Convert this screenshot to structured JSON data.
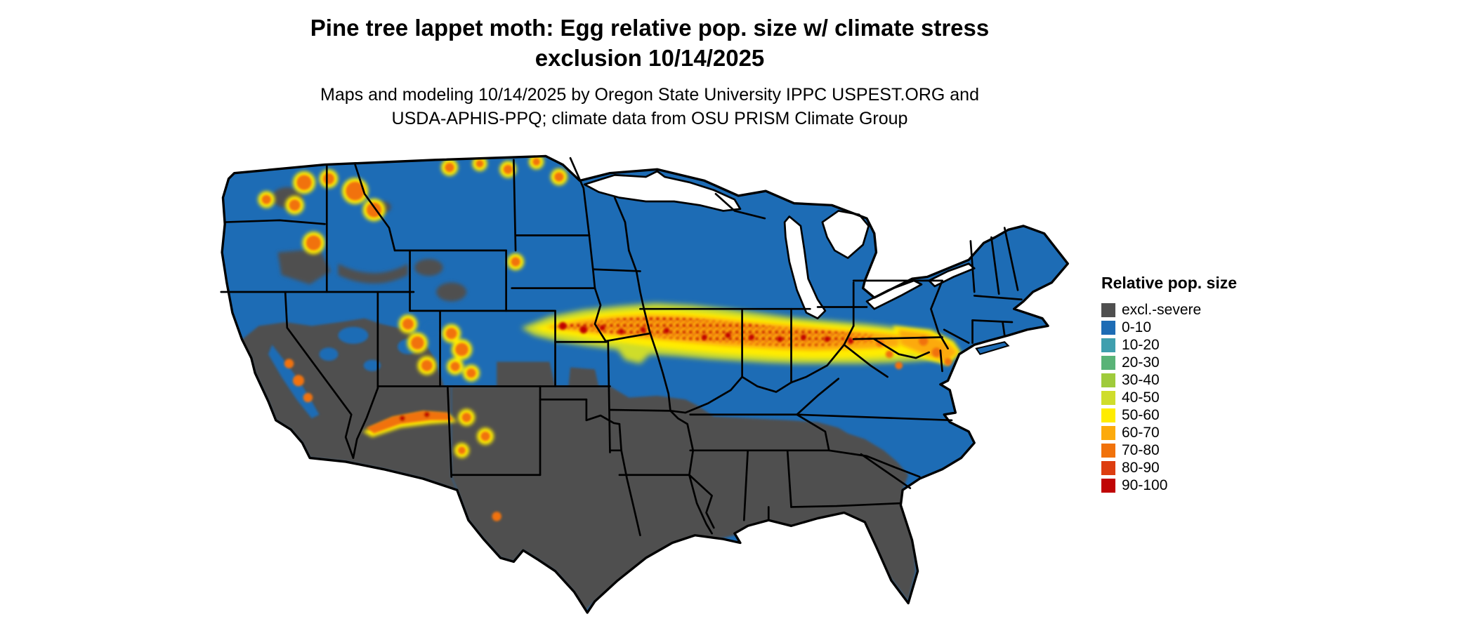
{
  "title": {
    "line1": "Pine tree lappet moth: Egg relative pop. size w/ climate stress",
    "line2": "exclusion 10/14/2025"
  },
  "subtitle": {
    "line1": "Maps and modeling 10/14/2025 by Oregon State University IPPC USPEST.ORG and",
    "line2": "USDA-APHIS-PPQ; climate data from OSU PRISM Climate Group"
  },
  "legend": {
    "title": "Relative pop. size",
    "items": [
      {
        "label": "excl.-severe",
        "color": "#4f4f4f"
      },
      {
        "label": "0-10",
        "color": "#1d6cb5"
      },
      {
        "label": "10-20",
        "color": "#3f9fae"
      },
      {
        "label": "20-30",
        "color": "#59b377"
      },
      {
        "label": "30-40",
        "color": "#9fcb3b"
      },
      {
        "label": "40-50",
        "color": "#cfdd2c"
      },
      {
        "label": "50-60",
        "color": "#ffec00"
      },
      {
        "label": "60-70",
        "color": "#fcaa0c"
      },
      {
        "label": "70-80",
        "color": "#f1720b"
      },
      {
        "label": "80-90",
        "color": "#dd3d10"
      },
      {
        "label": "90-100",
        "color": "#c00505"
      }
    ]
  },
  "colors": {
    "map_base": "#1d6cb5",
    "excluded": "#4f4f4f",
    "water": "#ffffff",
    "border": "#000000",
    "band_30_40": "#9fcb3b",
    "band_40_50": "#cfdd2c",
    "band_50_60": "#ffec00",
    "band_60_70": "#fcaa0c",
    "band_70_80": "#f1720b",
    "band_80_90": "#dd3d10",
    "band_90_100": "#c00505"
  }
}
